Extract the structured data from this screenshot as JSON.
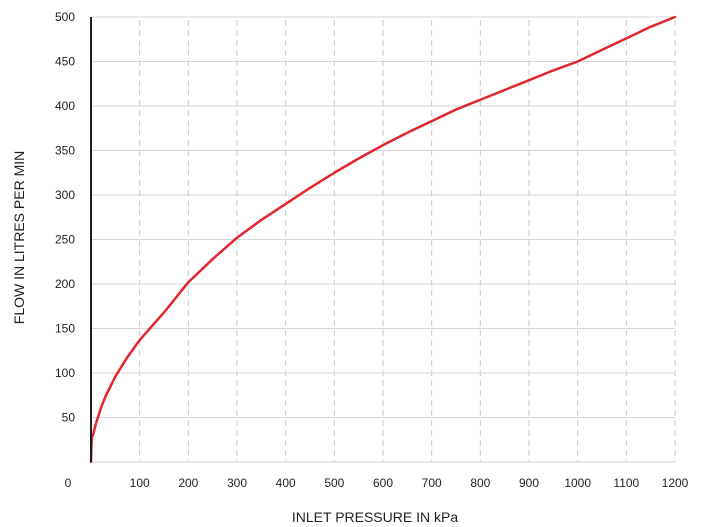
{
  "chart_data": {
    "type": "line",
    "title": "",
    "xlabel": "INLET PRESSURE IN kPa",
    "ylabel": "FLOW IN LITRES PER MIN",
    "xlim": [
      0,
      1200
    ],
    "ylim": [
      0,
      500
    ],
    "x_ticks": [
      100,
      200,
      300,
      400,
      500,
      600,
      700,
      800,
      900,
      1000,
      1100,
      1200
    ],
    "y_ticks": [
      50,
      100,
      150,
      200,
      250,
      300,
      350,
      400,
      450,
      500
    ],
    "origin_label": "0",
    "grid": {
      "x": "dashed",
      "y": "solid"
    },
    "line_color": "#e1262d",
    "series": [
      {
        "x": [
          0,
          1,
          2,
          5,
          10,
          20,
          30,
          50,
          75,
          100,
          150,
          200,
          250,
          300,
          350,
          400,
          450,
          500,
          550,
          600,
          650,
          700,
          750,
          800,
          850,
          900,
          950,
          1000,
          1050,
          1100,
          1150,
          1200
        ],
        "values": [
          0,
          20,
          28,
          32,
          43,
          60,
          74,
          96,
          118,
          137,
          168,
          202,
          228,
          252,
          272,
          290,
          308,
          325,
          341,
          356,
          370,
          383,
          396,
          407,
          418,
          429,
          440,
          450,
          463,
          476,
          489,
          500
        ]
      }
    ]
  }
}
